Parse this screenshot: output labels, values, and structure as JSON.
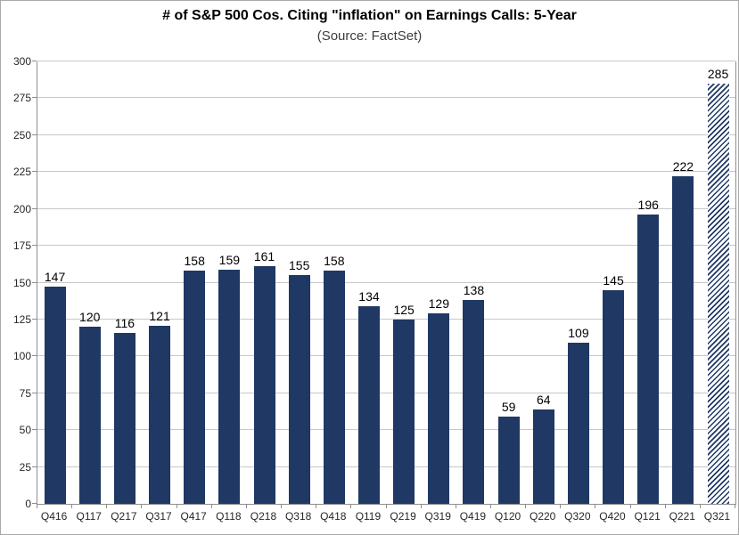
{
  "header": {
    "title": "# of S&P 500 Cos. Citing \"inflation\" on Earnings Calls: 5-Year",
    "subtitle": "(Source: FactSet)"
  },
  "chart_data": {
    "type": "bar",
    "title": "# of S&P 500 Cos. Citing \"inflation\" on Earnings Calls: 5-Year",
    "subtitle": "(Source: FactSet)",
    "categories": [
      "Q416",
      "Q117",
      "Q217",
      "Q317",
      "Q417",
      "Q118",
      "Q218",
      "Q318",
      "Q418",
      "Q119",
      "Q219",
      "Q319",
      "Q419",
      "Q120",
      "Q220",
      "Q320",
      "Q420",
      "Q121",
      "Q221",
      "Q321"
    ],
    "values": [
      147,
      120,
      116,
      121,
      158,
      159,
      161,
      155,
      158,
      134,
      125,
      129,
      138,
      59,
      64,
      109,
      145,
      196,
      222,
      285
    ],
    "xlabel": "",
    "ylabel": "",
    "ylim": [
      0,
      300
    ],
    "ytick_interval": 25,
    "grid": true,
    "legend_position": "none",
    "data_labels": true,
    "bar_color": "#1f3864",
    "last_bar_style": "diagonal-hatch",
    "gridline_color": "#c8c8c8",
    "axis_color": "#8e8e8e"
  }
}
